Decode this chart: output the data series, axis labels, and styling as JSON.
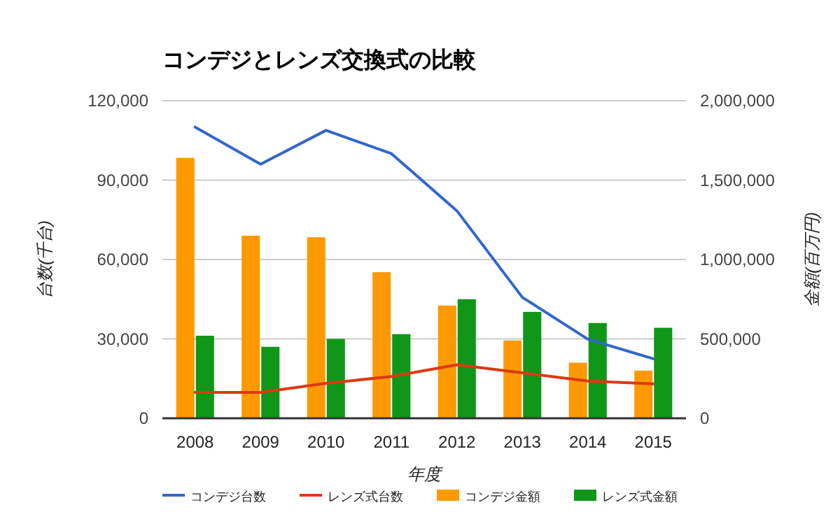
{
  "chart_data": {
    "type": "bar",
    "title": "コンデジとレンズ交換式の比較",
    "xlabel": "年度",
    "ylabel": "台数(千台)",
    "y2label": "金額(百万円)",
    "categories": [
      "2008",
      "2009",
      "2010",
      "2011",
      "2012",
      "2013",
      "2014",
      "2015"
    ],
    "series": [
      {
        "name": "コンデジ台数",
        "type": "line",
        "axis": "y",
        "color": "#3366cc",
        "values": [
          110000,
          96000,
          108800,
          100000,
          78400,
          45700,
          29900,
          22500
        ]
      },
      {
        "name": "レンズ式台数",
        "type": "line",
        "axis": "y",
        "color": "#dc3912",
        "values": [
          9800,
          9800,
          13200,
          15800,
          20200,
          17200,
          14100,
          13000
        ]
      },
      {
        "name": "コンデジ金額",
        "type": "bar",
        "axis": "y2",
        "color": "#ff9900",
        "values": [
          1640000,
          1150000,
          1140000,
          920000,
          710000,
          490000,
          350000,
          300000
        ]
      },
      {
        "name": "レンズ式金額",
        "type": "bar",
        "axis": "y2",
        "color": "#109618",
        "values": [
          520000,
          450000,
          500000,
          530000,
          750000,
          670000,
          600000,
          570000
        ]
      }
    ],
    "ylim": [
      0,
      120000
    ],
    "yticks": [
      0,
      {
        "value": 30000,
        "label": "30,000"
      },
      {
        "value": 60000,
        "label": "60,000"
      },
      {
        "value": 90000,
        "label": "90,000"
      },
      {
        "value": 120000,
        "label": "120,000"
      }
    ],
    "y2lim": [
      0,
      2000000
    ],
    "y2ticks": [
      0,
      {
        "value": 500000,
        "label": "500,000"
      },
      {
        "value": 1000000,
        "label": "1,000,000"
      },
      {
        "value": 1500000,
        "label": "1,500,000"
      },
      {
        "value": 2000000,
        "label": "2,000,000"
      }
    ],
    "grid": "y",
    "legend": "bottom"
  }
}
